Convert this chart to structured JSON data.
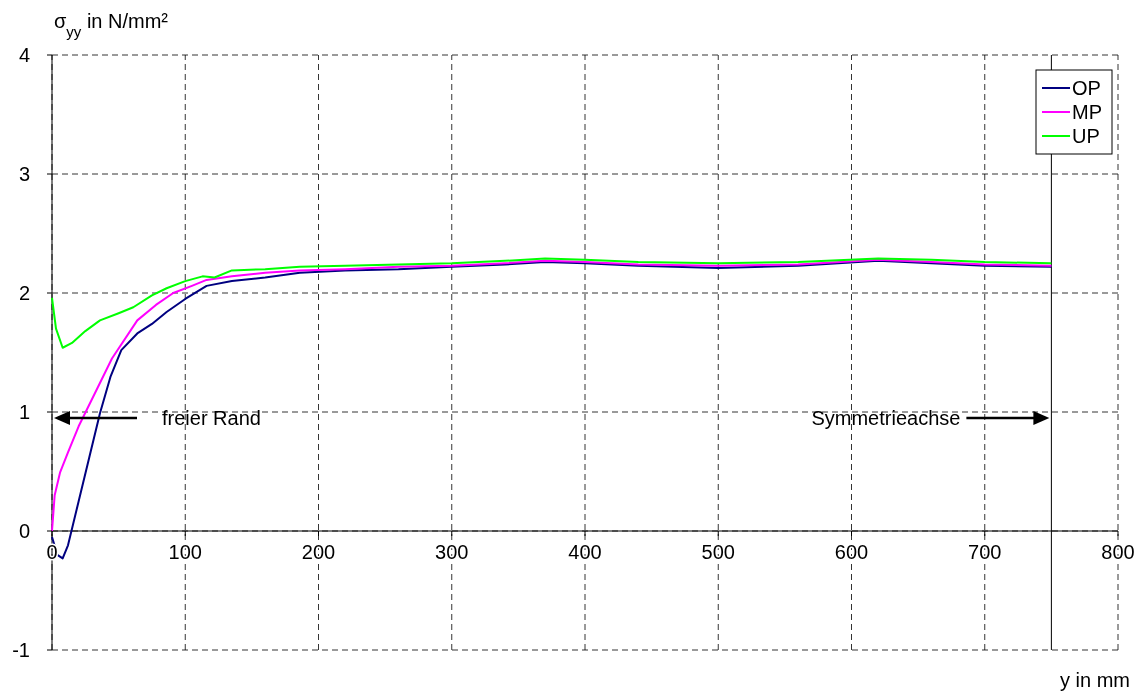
{
  "chart_data": {
    "type": "line",
    "ylabel": "σ$_{yy}$ in N/mm²",
    "xlabel": "y in mm",
    "xlim": [
      0,
      800
    ],
    "xticks": [
      0,
      100,
      200,
      300,
      400,
      500,
      600,
      700,
      800
    ],
    "ylim": [
      -1,
      4
    ],
    "yticks": [
      -1,
      0,
      1,
      2,
      3,
      4
    ],
    "grid": true,
    "legend": "top right",
    "line_style": "solid",
    "marker": "none",
    "series": [
      {
        "name": "OP",
        "color": "#000080",
        "x": [
          0,
          4,
          8,
          12,
          20,
          28,
          36,
          44,
          52,
          64,
          75,
          86,
          100,
          116,
          135,
          160,
          186,
          220,
          260,
          300,
          340,
          370,
          400,
          440,
          500,
          560,
          620,
          660,
          700,
          750
        ],
        "values": [
          -0.05,
          -0.2,
          -0.23,
          -0.12,
          0.25,
          0.62,
          0.99,
          1.3,
          1.52,
          1.66,
          1.74,
          1.84,
          1.95,
          2.06,
          2.1,
          2.13,
          2.17,
          2.19,
          2.2,
          2.22,
          2.24,
          2.26,
          2.25,
          2.23,
          2.21,
          2.23,
          2.27,
          2.25,
          2.23,
          2.22
        ]
      },
      {
        "name": "MP",
        "color": "#ff00ff",
        "x": [
          0,
          2,
          6,
          12,
          20,
          31,
          45,
          64,
          78,
          91,
          105,
          116,
          135,
          160,
          186,
          220,
          260,
          300,
          340,
          370,
          400,
          440,
          500,
          560,
          620,
          660,
          700,
          750
        ],
        "values": [
          0,
          0.3,
          0.49,
          0.66,
          0.88,
          1.13,
          1.45,
          1.77,
          1.9,
          2.0,
          2.06,
          2.11,
          2.14,
          2.17,
          2.19,
          2.2,
          2.22,
          2.23,
          2.25,
          2.27,
          2.26,
          2.24,
          2.23,
          2.24,
          2.28,
          2.26,
          2.24,
          2.23
        ]
      },
      {
        "name": "UP",
        "color": "#00ff00",
        "x": [
          0,
          3,
          8,
          15,
          25,
          36,
          50,
          61,
          75,
          86,
          100,
          113,
          122,
          135,
          160,
          186,
          220,
          260,
          300,
          340,
          370,
          400,
          440,
          500,
          560,
          620,
          660,
          700,
          750
        ],
        "values": [
          1.96,
          1.7,
          1.54,
          1.58,
          1.68,
          1.77,
          1.83,
          1.88,
          1.98,
          2.04,
          2.1,
          2.14,
          2.13,
          2.19,
          2.2,
          2.22,
          2.23,
          2.24,
          2.25,
          2.27,
          2.29,
          2.28,
          2.26,
          2.25,
          2.26,
          2.29,
          2.28,
          2.26,
          2.25
        ]
      }
    ],
    "ref_lines": [
      {
        "axis": "x",
        "value": 750,
        "color": "#000000",
        "line_style": "solid"
      }
    ],
    "annotations": [
      "freier Rand",
      "Symmetrieachse"
    ]
  }
}
